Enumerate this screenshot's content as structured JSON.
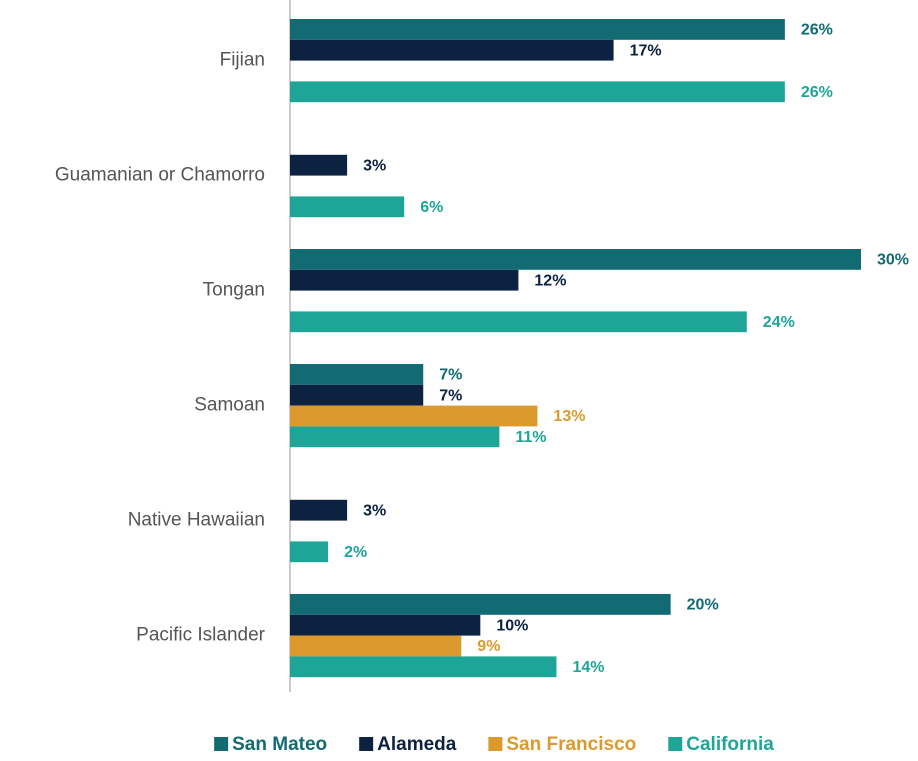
{
  "chart_data": {
    "type": "hbar",
    "categories": [
      "Fijian",
      "Guamanian or Chamorro",
      "Tongan",
      "Samoan",
      "Native Hawaiian",
      "Pacific Islander"
    ],
    "series": [
      {
        "name": "San Mateo",
        "color": "#126a73",
        "values": [
          26,
          null,
          30,
          7,
          null,
          20
        ],
        "value_labels": [
          "26%",
          null,
          "30%",
          "7%",
          null,
          "20%"
        ]
      },
      {
        "name": "Alameda",
        "color": "#0d2140",
        "values": [
          17,
          3,
          12,
          7,
          3,
          10
        ],
        "value_labels": [
          "17%",
          "3%",
          "12%",
          "7%",
          "3%",
          "10%"
        ]
      },
      {
        "name": "San Francisco",
        "color": "#dc9a2e",
        "values": [
          null,
          null,
          null,
          13,
          null,
          9
        ],
        "value_labels": [
          null,
          null,
          null,
          "13%",
          null,
          "9%"
        ]
      },
      {
        "name": "California",
        "color": "#1fa597",
        "values": [
          26,
          6,
          24,
          11,
          2,
          14
        ],
        "value_labels": [
          "26%",
          "6%",
          "24%",
          "11%",
          "2%",
          "14%"
        ]
      }
    ],
    "legend": "bottom"
  }
}
